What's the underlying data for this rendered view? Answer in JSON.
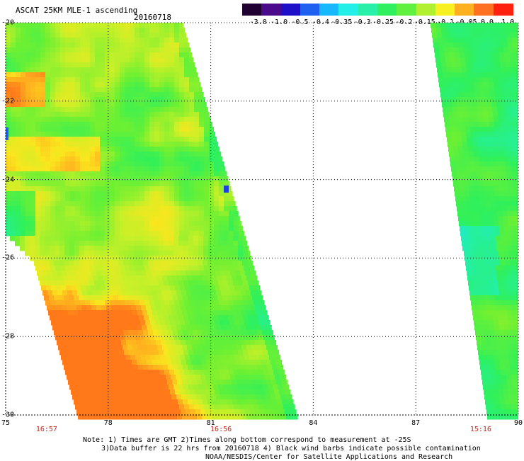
{
  "header": {
    "title": "ASCAT 25KM MLE-1 ascending",
    "date": "20160718"
  },
  "colorbar": {
    "colors": [
      "#200030",
      "#4a0a8c",
      "#1e10c8",
      "#1e60f0",
      "#18b8ff",
      "#22f0e8",
      "#28f0a8",
      "#30f060",
      "#60f040",
      "#b0f030",
      "#f8f020",
      "#ffb020",
      "#ff7020",
      "#ff2010"
    ],
    "labels": [
      "-3.0",
      "-1.0",
      "-0.5",
      "-0.4",
      "-0.35",
      "-0.3",
      "-0.25",
      "-0.2",
      "-0.15",
      "-0.1",
      "-0.05",
      "0.0",
      "1.0"
    ]
  },
  "map": {
    "lat_labels": [
      "-20",
      "-22",
      "-24",
      "-26",
      "-28",
      "-30"
    ],
    "lon_labels": [
      "75",
      "78",
      "81",
      "84",
      "87",
      "90"
    ],
    "lat_range": [
      -30,
      -20
    ],
    "lon_range": [
      75,
      90
    ],
    "pass_times": [
      {
        "lon": 76.2,
        "time": "16:57"
      },
      {
        "lon": 81.3,
        "time": "16:56"
      },
      {
        "lon": 88.9,
        "time": "15:16"
      }
    ],
    "swaths": [
      {
        "name": "western-swath",
        "dominant": "green",
        "notes": "yellow-orange values in south-west"
      },
      {
        "name": "eastern-swath",
        "dominant": "green-cyan"
      }
    ]
  },
  "notes": {
    "line1": "Note: 1) Times are GMT 2)Times along bottom correspond to measurement at -25S",
    "line2": "3)Data buffer is 22 hrs from 20160718 4) Black wind barbs indicate possible contamination",
    "line3": "NOAA/NESDIS/Center for Satellite Applications and Research"
  }
}
